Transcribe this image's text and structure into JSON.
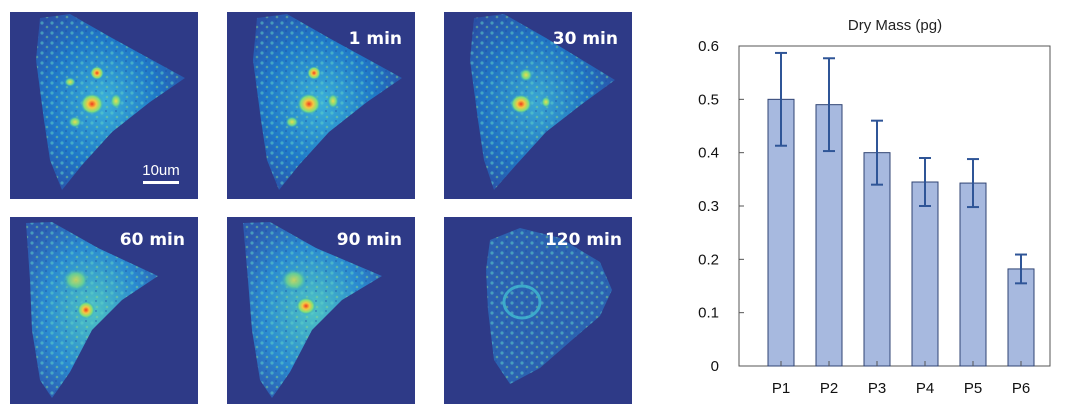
{
  "panels": [
    {
      "label": ""
    },
    {
      "label": "1 min"
    },
    {
      "label": "30 min"
    },
    {
      "label": "60 min"
    },
    {
      "label": "90 min"
    },
    {
      "label": "120 min"
    }
  ],
  "scale_bar": {
    "label": "10um"
  },
  "colors": {
    "background": "#2e3a87",
    "bar_fill": "#a7b9df",
    "bar_stroke": "#2f4373",
    "error_bar": "#2f5597",
    "heat_low": "#1e90d6",
    "heat_mid": "#7fe07a",
    "heat_high": "#f03a1e"
  },
  "chart_data": {
    "type": "bar",
    "title": "Dry Mass (pg)",
    "xlabel": "",
    "ylabel": "",
    "categories": [
      "P1",
      "P2",
      "P3",
      "P4",
      "P5",
      "P6"
    ],
    "values": [
      0.5,
      0.49,
      0.4,
      0.345,
      0.343,
      0.182
    ],
    "error": [
      0.087,
      0.087,
      0.06,
      0.045,
      0.045,
      0.027
    ],
    "ylim": [
      0,
      0.6
    ],
    "yticks": [
      "0",
      "0.1",
      "0.2",
      "0.3",
      "0.4",
      "0.5",
      "0.6"
    ],
    "grid": false
  }
}
